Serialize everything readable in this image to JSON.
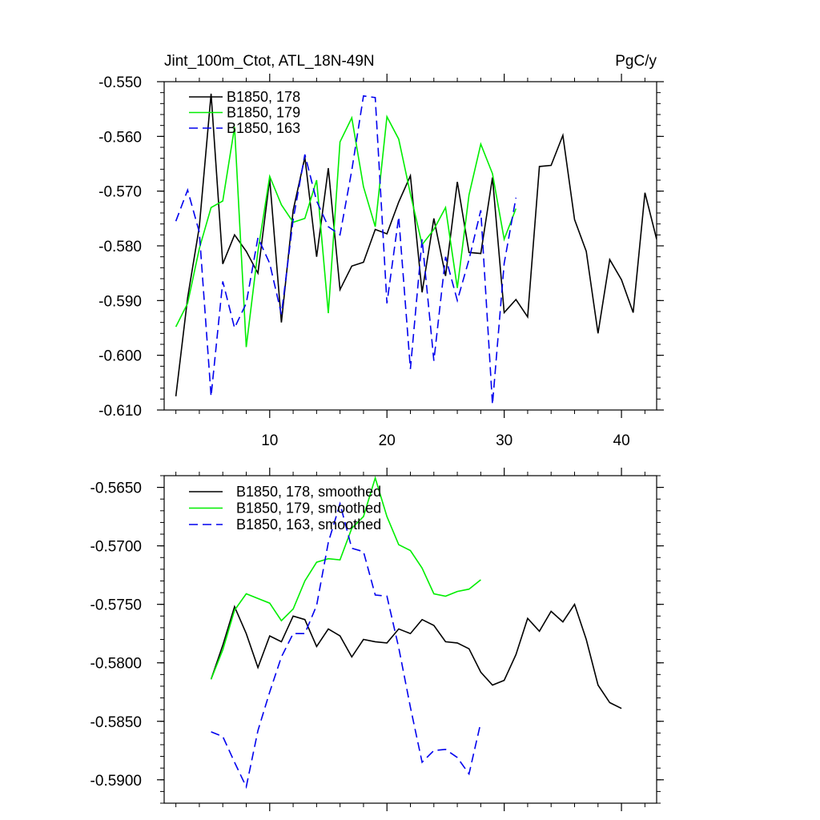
{
  "colors": {
    "s178": "#000000",
    "s179": "#00ee00",
    "s163": "#0000ee",
    "axes": "#000000",
    "background": "#ffffff"
  },
  "chart_data": [
    {
      "type": "line",
      "title": "Jint_100m_Ctot, ATL_18N-49N",
      "units": "PgC/y",
      "xlabel": "",
      "ylabel": "",
      "xlim": [
        1,
        43
      ],
      "ylim": [
        -0.61,
        -0.55
      ],
      "xticks": [
        10,
        20,
        30,
        40
      ],
      "xtick_labels": [
        "10",
        "20",
        "30",
        "40"
      ],
      "yticks": [
        -0.61,
        -0.6,
        -0.59,
        -0.58,
        -0.57,
        -0.56,
        -0.55
      ],
      "ytick_labels": [
        "-0.610",
        "-0.600",
        "-0.590",
        "-0.580",
        "-0.570",
        "-0.560",
        "-0.550"
      ],
      "legend_position": "top-left",
      "series": [
        {
          "name": "B1850, 178",
          "style": "solid",
          "color": "#000000",
          "x": [
            2,
            3,
            4,
            5,
            6,
            7,
            8,
            9,
            10,
            11,
            12,
            13,
            14,
            15,
            16,
            17,
            18,
            19,
            20,
            21,
            22,
            23,
            24,
            25,
            26,
            27,
            28,
            29,
            30,
            31,
            32,
            33,
            34,
            35,
            36,
            37,
            38,
            39,
            40,
            41,
            42,
            43
          ],
          "y": [
            -0.6075,
            -0.5895,
            -0.5765,
            -0.5522,
            -0.5833,
            -0.578,
            -0.581,
            -0.585,
            -0.5678,
            -0.594,
            -0.5735,
            -0.5638,
            -0.582,
            -0.5658,
            -0.588,
            -0.5837,
            -0.583,
            -0.577,
            -0.5778,
            -0.572,
            -0.5672,
            -0.5885,
            -0.575,
            -0.5855,
            -0.5683,
            -0.5812,
            -0.5814,
            -0.5675,
            -0.5922,
            -0.5898,
            -0.593,
            -0.5655,
            -0.5653,
            -0.5598,
            -0.5752,
            -0.581,
            -0.596,
            -0.5825,
            -0.5862,
            -0.5922,
            -0.5703,
            -0.5788
          ]
        },
        {
          "name": "B1850, 179",
          "style": "solid",
          "color": "#00ee00",
          "x": [
            2,
            3,
            4,
            5,
            6,
            7,
            8,
            9,
            10,
            11,
            12,
            13,
            14,
            15,
            16,
            17,
            18,
            19,
            20,
            21,
            22,
            23,
            24,
            25,
            26,
            27,
            28,
            29,
            30,
            31
          ],
          "y": [
            -0.5948,
            -0.5905,
            -0.5805,
            -0.573,
            -0.5718,
            -0.5583,
            -0.5985,
            -0.581,
            -0.5673,
            -0.5725,
            -0.5757,
            -0.575,
            -0.568,
            -0.5923,
            -0.561,
            -0.5566,
            -0.5692,
            -0.5765,
            -0.5564,
            -0.5605,
            -0.5705,
            -0.5798,
            -0.577,
            -0.573,
            -0.5877,
            -0.5707,
            -0.5614,
            -0.5668,
            -0.5788,
            -0.5732
          ]
        },
        {
          "name": "B1850, 163",
          "style": "dashed",
          "color": "#0000ee",
          "x": [
            2,
            3,
            4,
            5,
            6,
            7,
            8,
            9,
            10,
            11,
            12,
            13,
            14,
            15,
            16,
            17,
            18,
            19,
            20,
            21,
            22,
            23,
            24,
            25,
            26,
            27,
            28,
            29,
            30,
            31
          ],
          "y": [
            -0.5755,
            -0.5698,
            -0.5775,
            -0.6075,
            -0.5865,
            -0.595,
            -0.5905,
            -0.5785,
            -0.5832,
            -0.5925,
            -0.5752,
            -0.5633,
            -0.5718,
            -0.5765,
            -0.578,
            -0.5662,
            -0.5526,
            -0.5529,
            -0.5905,
            -0.5747,
            -0.6025,
            -0.5788,
            -0.601,
            -0.582,
            -0.59,
            -0.5825,
            -0.5735,
            -0.609,
            -0.5832,
            -0.5712
          ]
        }
      ]
    },
    {
      "type": "line",
      "title": "",
      "xlabel": "",
      "ylabel": "",
      "xlim": [
        1,
        43
      ],
      "ylim": [
        -0.592,
        -0.564
      ],
      "xticks": [
        10,
        20,
        30,
        40
      ],
      "xtick_labels": [],
      "yticks": [
        -0.59,
        -0.585,
        -0.58,
        -0.575,
        -0.57,
        -0.565
      ],
      "ytick_labels": [
        "-0.5900",
        "-0.5850",
        "-0.5800",
        "-0.5750",
        "-0.5700",
        "-0.5650"
      ],
      "legend_position": "top-left",
      "series": [
        {
          "name": "B1850, 178, smoothed",
          "style": "solid",
          "color": "#000000",
          "x": [
            5,
            6,
            7,
            8,
            9,
            10,
            11,
            12,
            13,
            14,
            15,
            16,
            17,
            18,
            19,
            20,
            21,
            22,
            23,
            24,
            25,
            26,
            27,
            28,
            29,
            30,
            31,
            32,
            33,
            34,
            35,
            36,
            37,
            38,
            39,
            40
          ],
          "y": [
            -0.5814,
            -0.5785,
            -0.5752,
            -0.5775,
            -0.5804,
            -0.5777,
            -0.5782,
            -0.576,
            -0.5763,
            -0.5786,
            -0.5771,
            -0.5777,
            -0.5795,
            -0.578,
            -0.5782,
            -0.5783,
            -0.5771,
            -0.5775,
            -0.5763,
            -0.5768,
            -0.5782,
            -0.5783,
            -0.5788,
            -0.5808,
            -0.5819,
            -0.5815,
            -0.5793,
            -0.5762,
            -0.5773,
            -0.5756,
            -0.5765,
            -0.575,
            -0.578,
            -0.5819,
            -0.5834,
            -0.5839
          ]
        },
        {
          "name": "B1850, 179, smoothed",
          "style": "solid",
          "color": "#00ee00",
          "x": [
            5,
            6,
            7,
            8,
            9,
            10,
            11,
            12,
            13,
            14,
            15,
            16,
            17,
            18,
            19,
            20,
            21,
            22,
            23,
            24,
            25,
            26,
            27,
            28
          ],
          "y": [
            -0.5814,
            -0.5789,
            -0.5755,
            -0.5741,
            -0.5745,
            -0.5749,
            -0.5764,
            -0.5754,
            -0.573,
            -0.5714,
            -0.5711,
            -0.5712,
            -0.5685,
            -0.5675,
            -0.5642,
            -0.5675,
            -0.5699,
            -0.5704,
            -0.5719,
            -0.5741,
            -0.5743,
            -0.5739,
            -0.5737,
            -0.5729
          ]
        },
        {
          "name": "B1850, 163, smoothed",
          "style": "dashed",
          "color": "#0000ee",
          "x": [
            5,
            6,
            7,
            8,
            9,
            10,
            11,
            12,
            13,
            14,
            15,
            16,
            17,
            18,
            19,
            20,
            21,
            22,
            23,
            24,
            25,
            26,
            27,
            28
          ],
          "y": [
            -0.5859,
            -0.5863,
            -0.5885,
            -0.5906,
            -0.5858,
            -0.5825,
            -0.5795,
            -0.5775,
            -0.5775,
            -0.5751,
            -0.5697,
            -0.5664,
            -0.5702,
            -0.5705,
            -0.5742,
            -0.5743,
            -0.5787,
            -0.5838,
            -0.5885,
            -0.5875,
            -0.5874,
            -0.5881,
            -0.5895,
            -0.5851
          ]
        }
      ]
    }
  ]
}
